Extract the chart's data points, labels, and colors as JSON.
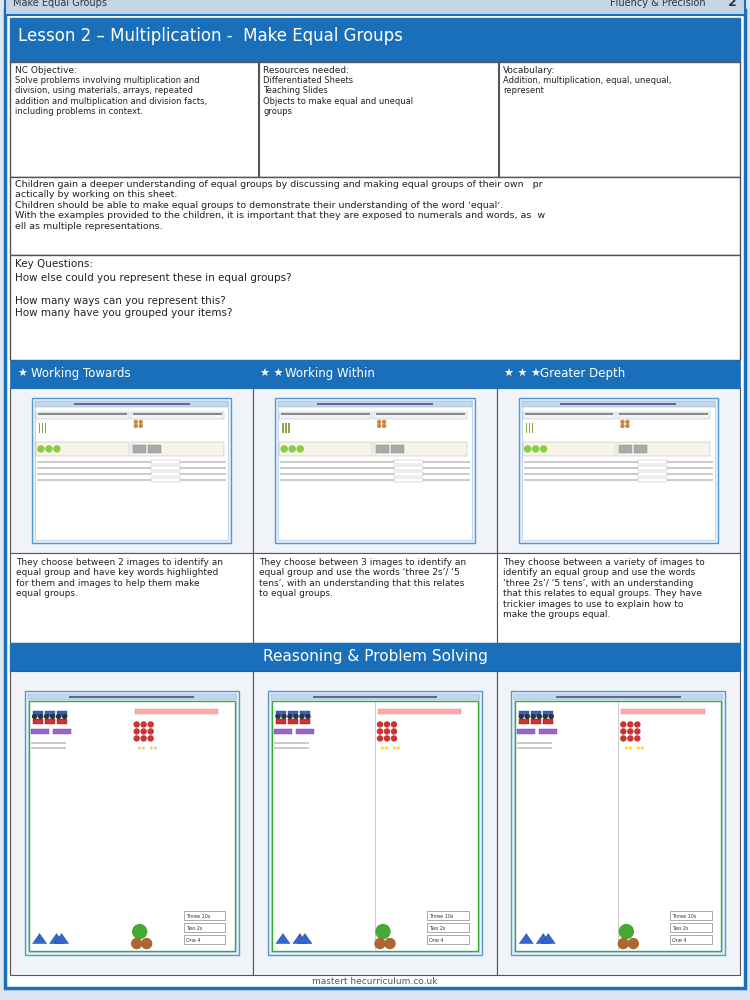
{
  "page_bg": "#dce6f0",
  "header_bg": "#c5d5e8",
  "header_text_left": "Make Equal Groups",
  "header_text_right": "Fluency & Precision",
  "header_num": "2",
  "title_bg": "#1a6fba",
  "title_text": "Lesson 2 – Multiplication -  Make Equal Groups",
  "nc_objective_title": "NC Objective:",
  "nc_objective_body": "Solve problems involving multiplication and\ndivision, using materials, arrays, repeated\naddition and multiplication and division facts,\nincluding problems in context.",
  "resources_title": "Resources needed:",
  "resources_body": "Differentiated Sheets\nTeaching Slides\nObjects to make equal and unequal\ngroups",
  "vocab_title": "Vocabulary:",
  "vocab_body": "Addition, multiplication, equal, unequal,\nrepresent",
  "overview_text": "Children gain a deeper understanding of equal groups by discussing and making equal groups of their own   pr\nactically by working on this sheet.\nChildren should be able to make equal groups to demonstrate their understanding of the word ʼequalʼ.\nWith the examples provided to the children, it is important that they are exposed to numerals and words, as  w\nell as multiple representations.",
  "key_questions_title": "Key Questions:",
  "key_questions_body": "How else could you represent these in equal groups?\n\nHow many ways can you represent this?\nHow many have you grouped your items?",
  "col_header_bg": "#1a6fba",
  "col1_header": "Working Towards",
  "col2_header": "Working Within",
  "col3_header": "Greater Depth",
  "col1_stars": 1,
  "col2_stars": 2,
  "col3_stars": 3,
  "col1_desc": "They choose between 2 images to identify an\nequal group and have key words highlighted\nfor them and images to help them make\nequal groups.",
  "col2_desc": "They choose between 3 images to identify an\nequal group and use the words ‘three 2s’/ ‘5\ntens’, with an understanding that this relates\nto equal groups.",
  "col3_desc": "They choose between a variety of images to\nidentify an equal group and use the words\n‘three 2s’/ ‘5 tens’, with an understanding\nthat this relates to equal groups. They have\ntrickier images to use to explain how to\nmake the groups equal.",
  "rps_header_bg": "#1a6fba",
  "rps_header_text": "Reasoning & Problem Solving",
  "footer_text": "mastert hecurriculum.co.uk",
  "border_color": "#1a6fba",
  "inner_border": "#444444",
  "text_color": "#222222",
  "white": "#ffffff",
  "thumb_border": "#5599cc",
  "thumb_bg": "#f5f8fc",
  "rps_thumb_green": "#3aaa35",
  "rps_thumb_blue": "#1a6fba"
}
